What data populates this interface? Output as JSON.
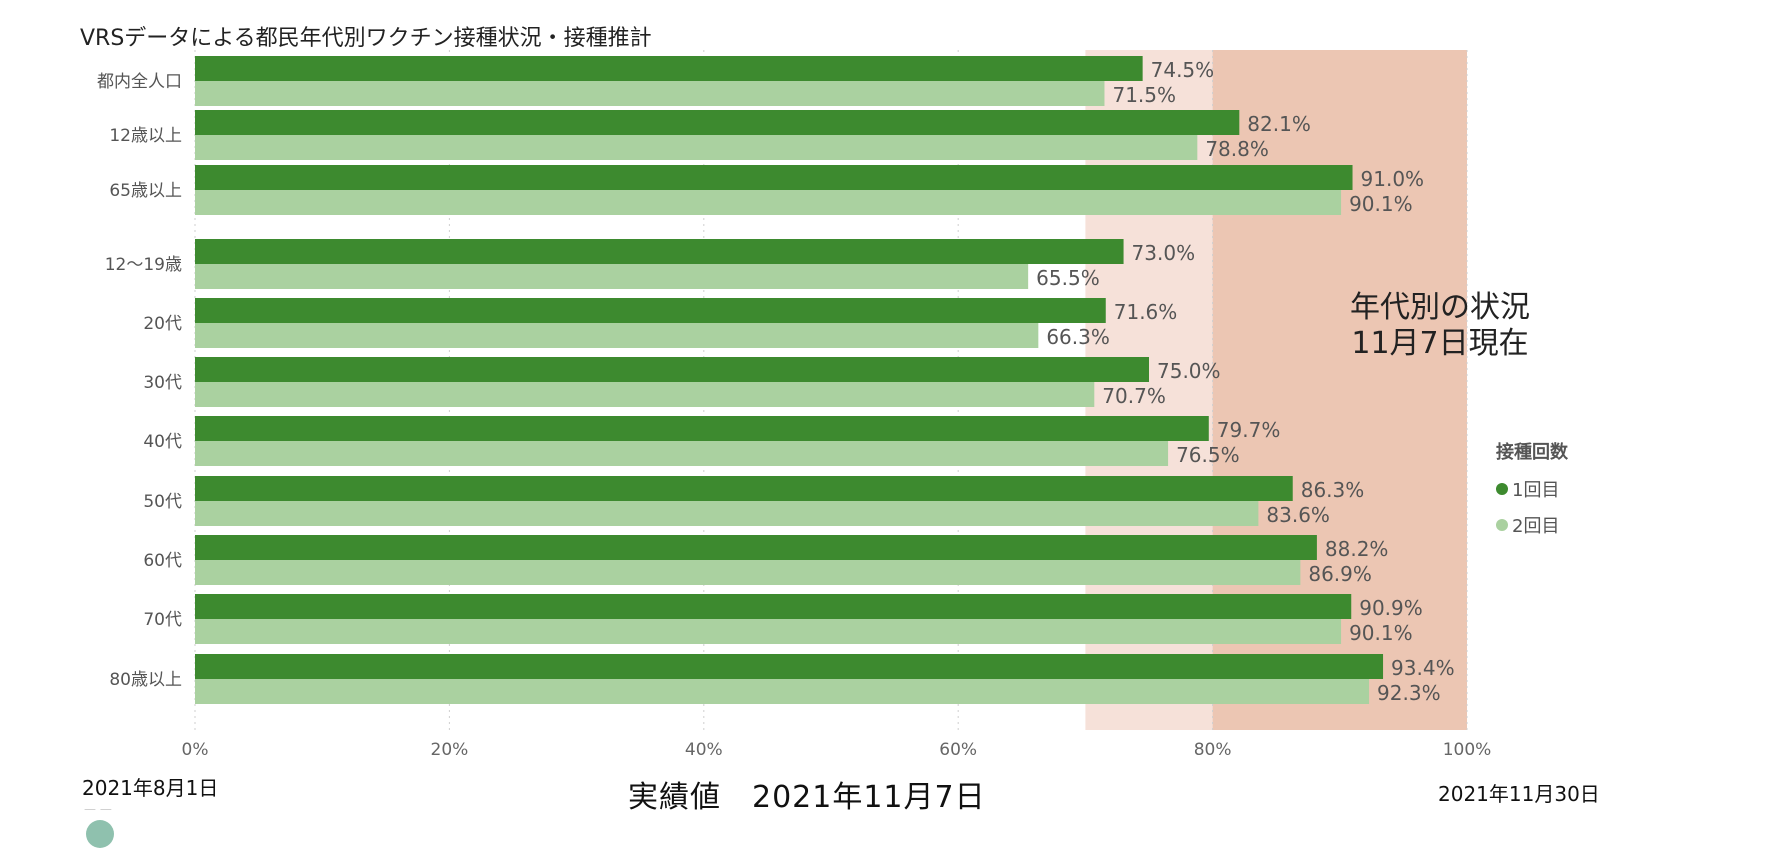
{
  "chart_data": {
    "type": "bar",
    "orientation": "horizontal",
    "title": "VRSデータによる都民年代別ワクチン接種状況・接種推計",
    "categories": [
      "都内全人口",
      "12歳以上",
      "65歳以上",
      "12〜19歳",
      "20代",
      "30代",
      "40代",
      "50代",
      "60代",
      "70代",
      "80歳以上"
    ],
    "series": [
      {
        "name": "1回目",
        "color": "#3d8a2f",
        "values": [
          74.5,
          82.1,
          91.0,
          73.0,
          71.6,
          75.0,
          79.7,
          86.3,
          88.2,
          90.9,
          93.4
        ],
        "labels": [
          "74.5%",
          "82.1%",
          "91.0%",
          "73.0%",
          "71.6%",
          "75.0%",
          "79.7%",
          "86.3%",
          "88.2%",
          "90.9%",
          "93.4%"
        ]
      },
      {
        "name": "2回目",
        "color": "#aad1a0",
        "values": [
          71.5,
          78.8,
          90.1,
          65.5,
          66.3,
          70.7,
          76.5,
          83.6,
          86.9,
          90.1,
          92.3
        ],
        "labels": [
          "71.5%",
          "78.8%",
          "90.1%",
          "65.5%",
          "66.3%",
          "70.7%",
          "76.5%",
          "83.6%",
          "86.9%",
          "90.1%",
          "92.3%"
        ]
      }
    ],
    "xlim": [
      0,
      100
    ],
    "xticks": [
      "0%",
      "20%",
      "40%",
      "60%",
      "80%",
      "100%"
    ],
    "grid": true,
    "shaded_bands": [
      {
        "from": 70,
        "to": 80,
        "color": "#f6e1d9"
      },
      {
        "from": 80,
        "to": 100,
        "color": "#ecc6b3"
      }
    ],
    "legend": {
      "title": "接種回数",
      "placement": "right"
    }
  },
  "annotation": {
    "line1": "年代別の状況",
    "line2": "11月7日現在"
  },
  "timeline": {
    "start": "2021年8月1日",
    "mid": "実績値　2021年11月7日",
    "end": "2021年11月30日"
  }
}
